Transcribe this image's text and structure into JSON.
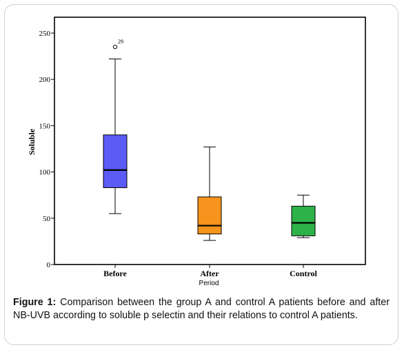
{
  "caption": {
    "label": "Figure 1:",
    "text": " Comparison between the group A and control A patients before and after NB-UVB according to soluble p selectin and their relations to control A patients."
  },
  "chart_data": {
    "type": "boxplot",
    "title": "",
    "xlabel": "Period",
    "ylabel": "Soluble",
    "ylim": [
      0,
      250
    ],
    "yticks": [
      0,
      50,
      100,
      150,
      200,
      250
    ],
    "grid": false,
    "categories": [
      "Before",
      "After",
      "Control"
    ],
    "boxes": [
      {
        "category": "Before",
        "whisker_low": 55,
        "q1": 83,
        "median": 102,
        "q3": 140,
        "whisker_high": 222,
        "color": "#5b5bf5",
        "outliers": [
          {
            "value": 235,
            "label": "29"
          }
        ]
      },
      {
        "category": "After",
        "whisker_low": 26,
        "q1": 33,
        "median": 42,
        "q3": 73,
        "whisker_high": 127,
        "color": "#f7941d",
        "outliers": []
      },
      {
        "category": "Control",
        "whisker_low": 29,
        "q1": 31,
        "median": 45,
        "q3": 63,
        "whisker_high": 75,
        "color": "#2db24a",
        "outliers": []
      }
    ]
  }
}
